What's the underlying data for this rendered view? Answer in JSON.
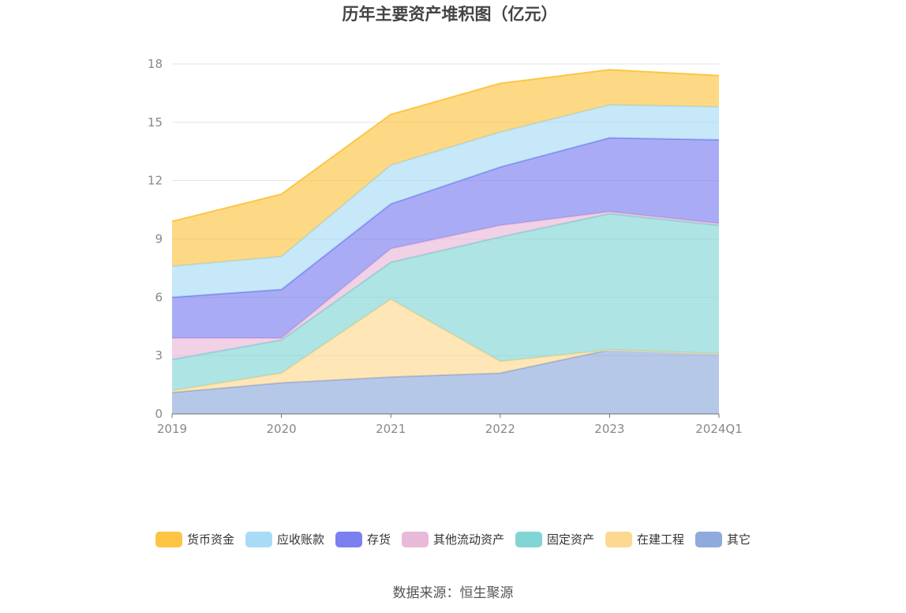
{
  "chart_data": {
    "type": "area",
    "stacked": true,
    "title": "历年主要资产堆积图（亿元）",
    "categories": [
      "2019",
      "2020",
      "2021",
      "2022",
      "2023",
      "2024Q1"
    ],
    "ylim": [
      0,
      18
    ],
    "yticks": [
      "0",
      "3",
      "6",
      "9",
      "12",
      "15",
      "18"
    ],
    "grid": true,
    "legend_position": "bottom",
    "series": [
      {
        "name": "其它",
        "color": "#8faadc",
        "values": [
          1.1,
          1.6,
          1.9,
          2.1,
          3.3,
          3.1
        ]
      },
      {
        "name": "在建工程",
        "color": "#fdd890",
        "values": [
          0.1,
          0.5,
          4.0,
          0.6,
          0.0,
          0.0
        ]
      },
      {
        "name": "固定资产",
        "color": "#82d5d5",
        "values": [
          1.6,
          1.7,
          1.9,
          6.4,
          7.0,
          6.6
        ]
      },
      {
        "name": "其他流动资产",
        "color": "#e8b9d9",
        "values": [
          1.1,
          0.1,
          0.7,
          0.6,
          0.1,
          0.1
        ]
      },
      {
        "name": "存货",
        "color": "#7b7ff0",
        "values": [
          2.1,
          2.5,
          2.3,
          3.0,
          3.8,
          4.3
        ]
      },
      {
        "name": "应收账款",
        "color": "#a8dcf6",
        "values": [
          1.6,
          1.7,
          2.0,
          1.8,
          1.7,
          1.7
        ]
      },
      {
        "name": "货币资金",
        "color": "#fdc543",
        "values": [
          2.3,
          3.2,
          2.6,
          2.5,
          1.8,
          1.6
        ]
      }
    ]
  },
  "legend_order": [
    "货币资金",
    "应收账款",
    "存货",
    "其他流动资产",
    "固定资产",
    "在建工程",
    "其它"
  ],
  "source": "数据来源：恒生聚源"
}
